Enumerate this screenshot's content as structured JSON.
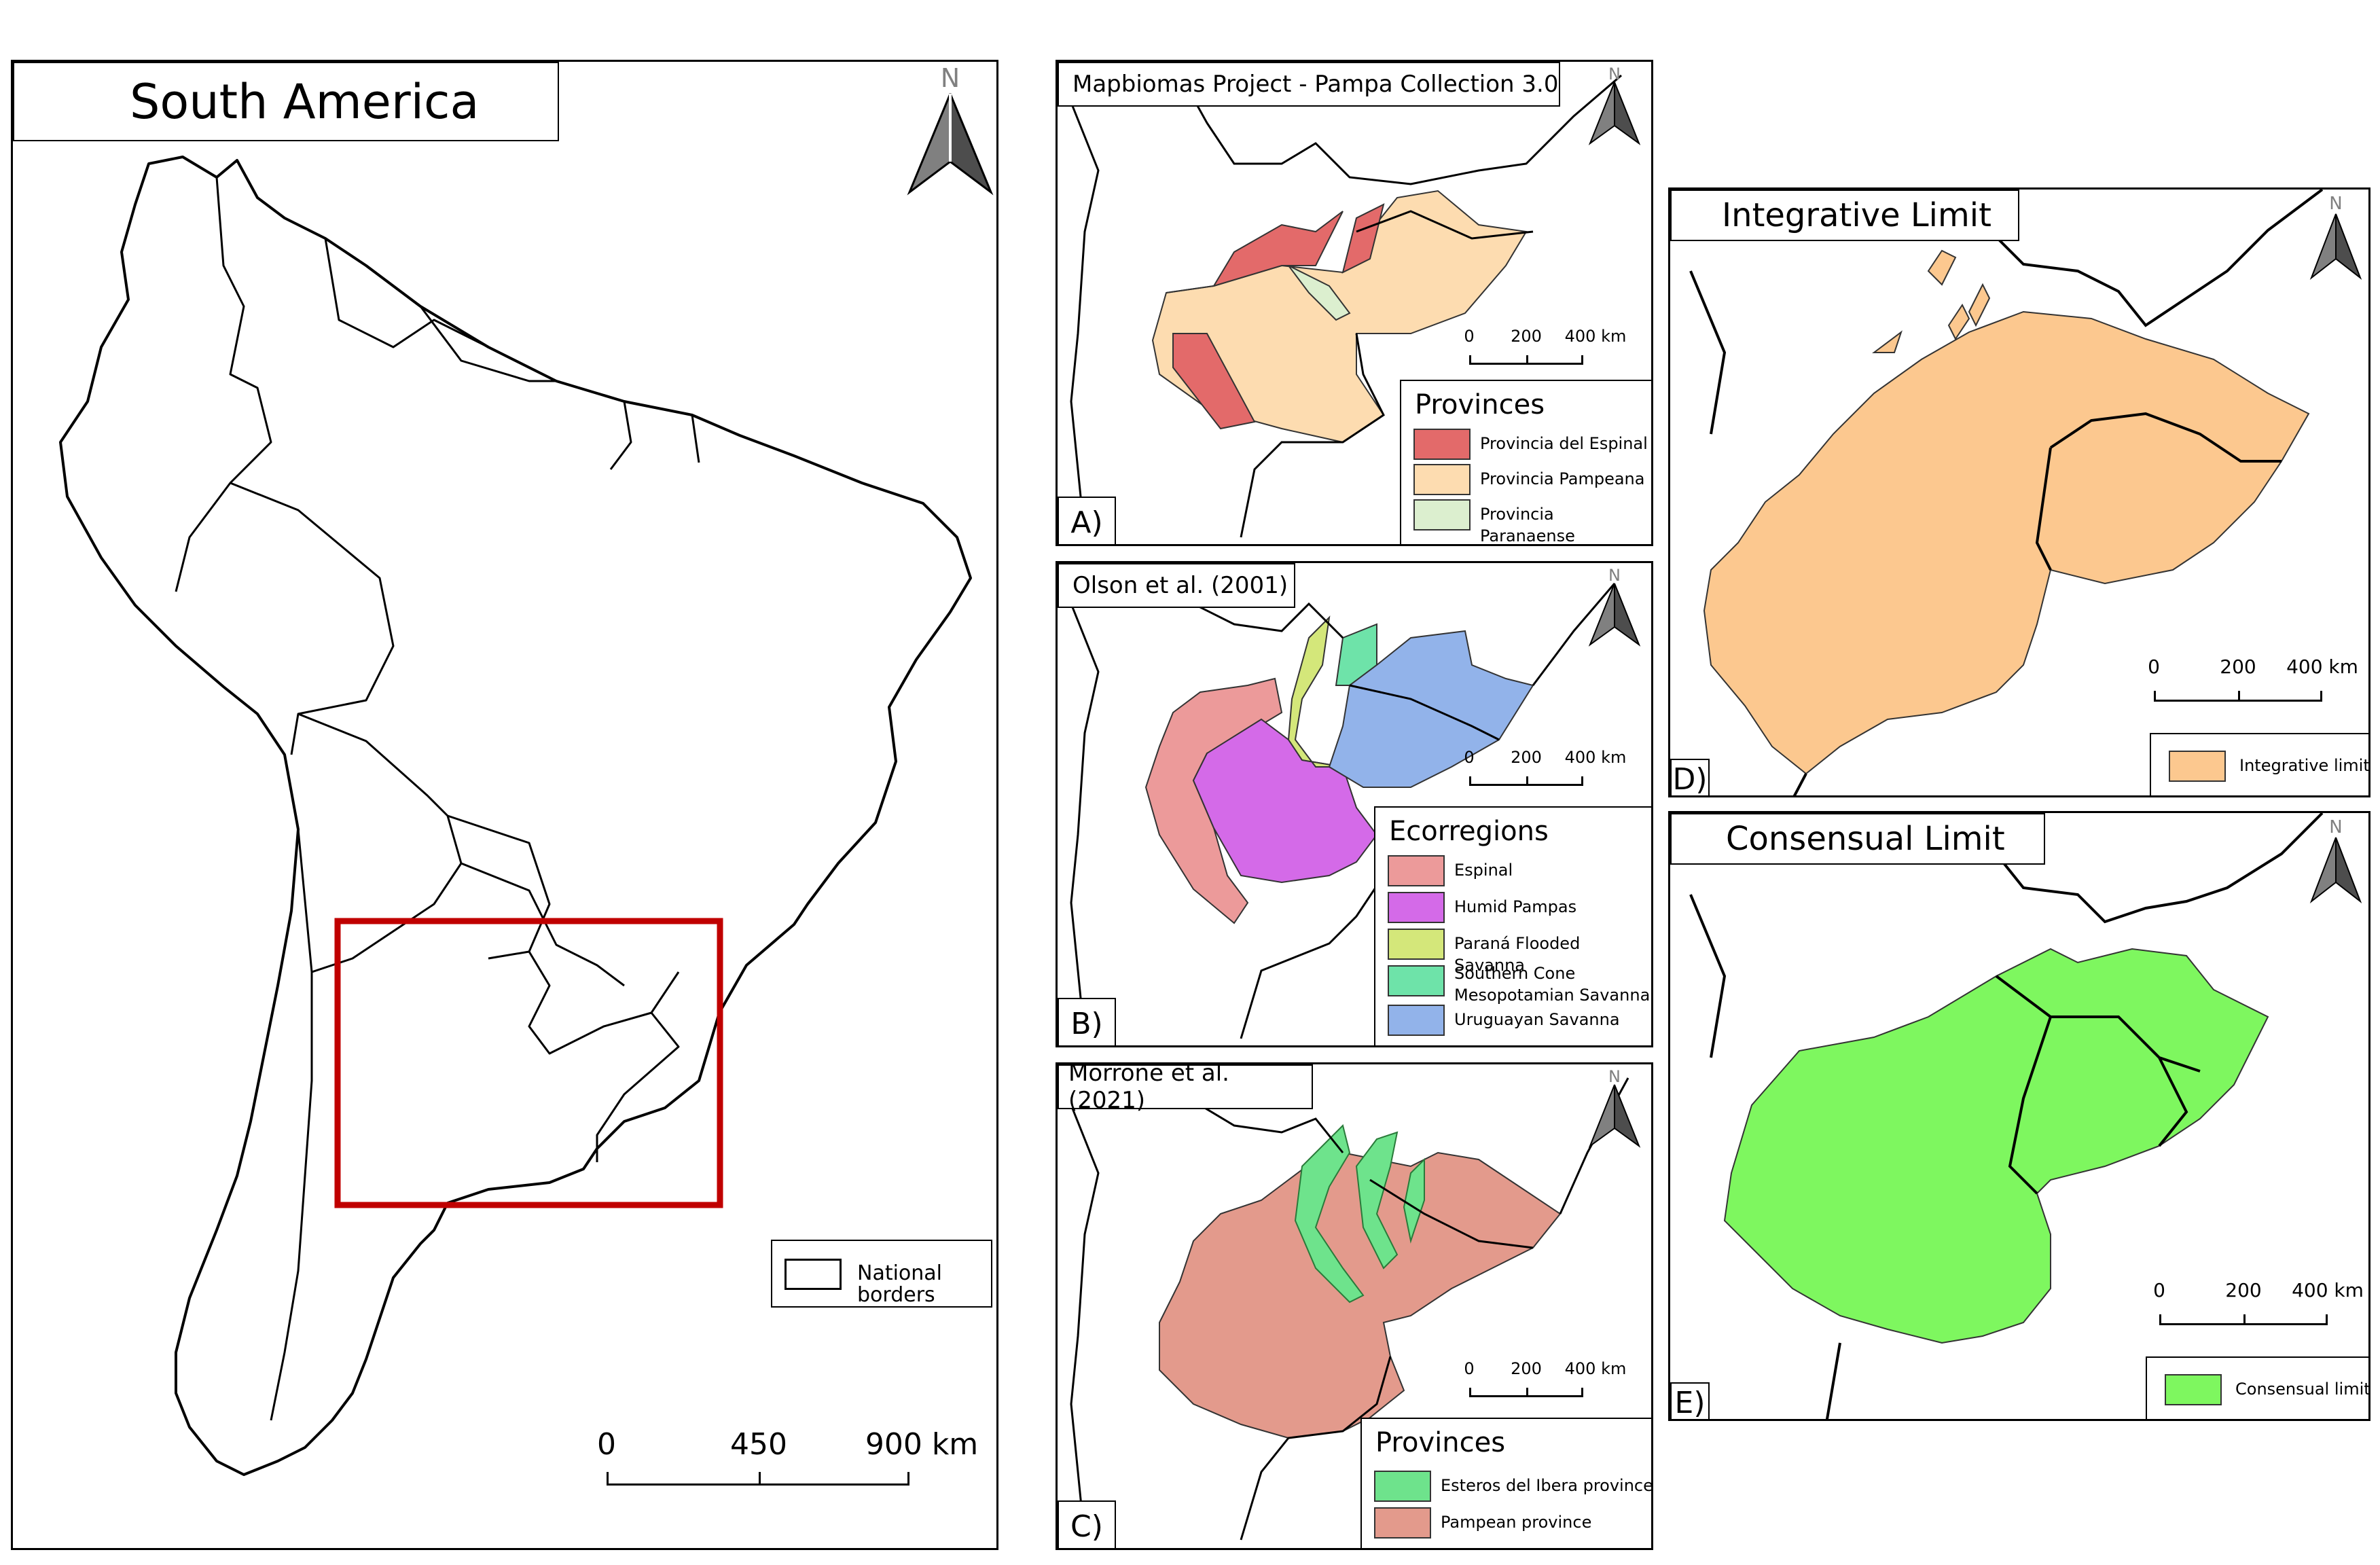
{
  "main_map": {
    "title": "South America",
    "legend_label": "National borders",
    "scale": {
      "ticks": [
        "0",
        "450",
        "900 km"
      ]
    },
    "north_label": "N"
  },
  "panels": [
    {
      "id": "A",
      "letter": "A)",
      "title": "Mapbiomas Project - Pampa Collection 3.0",
      "legend_title": "Provinces",
      "legend": [
        {
          "label": "Provincia del Espinal",
          "color": "#e36a6a"
        },
        {
          "label": "Provincia Pampeana",
          "color": "#fddcb0"
        },
        {
          "label": "Provincia Paranaense",
          "color": "#dcefcf"
        }
      ],
      "scale_ticks": [
        "0",
        "200",
        "400 km"
      ],
      "north_label": "N"
    },
    {
      "id": "B",
      "letter": "B)",
      "title": "Olson et al. (2001)",
      "legend_title": "Ecorregions",
      "legend": [
        {
          "label": "Espinal",
          "color": "#ec9a9a"
        },
        {
          "label": "Humid Pampas",
          "color": "#d46ae8"
        },
        {
          "label": "Paraná Flooded Savanna",
          "color": "#d4e77a"
        },
        {
          "label": "Southern Cone Mesopotamian Savanna",
          "color": "#6ee3a9"
        },
        {
          "label": "Uruguayan Savanna",
          "color": "#92b3ea"
        }
      ],
      "scale_ticks": [
        "0",
        "200",
        "400 km"
      ],
      "north_label": "N"
    },
    {
      "id": "C",
      "letter": "C)",
      "title": "Morrone et al. (2021)",
      "legend_title": "Provinces",
      "legend": [
        {
          "label": "Esteros del Ibera province",
          "color": "#6ee38c"
        },
        {
          "label": "Pampean province",
          "color": "#e39a8c"
        }
      ],
      "scale_ticks": [
        "0",
        "200",
        "400 km"
      ],
      "north_label": "N"
    },
    {
      "id": "D",
      "letter": "D)",
      "title": "Integrative Limit",
      "legend": [
        {
          "label": "Integrative limit",
          "color": "#fcc88f"
        }
      ],
      "scale_ticks": [
        "0",
        "200",
        "400 km"
      ],
      "north_label": "N"
    },
    {
      "id": "E",
      "letter": "E)",
      "title": "Consensual Limit",
      "legend": [
        {
          "label": "Consensual limit",
          "color": "#7ef75f"
        }
      ],
      "scale_ticks": [
        "0",
        "200",
        "400 km"
      ],
      "north_label": "N"
    }
  ],
  "colors": {
    "highlight_box": "#c00000",
    "border_line": "#000000",
    "north_arrow": "#808080"
  }
}
